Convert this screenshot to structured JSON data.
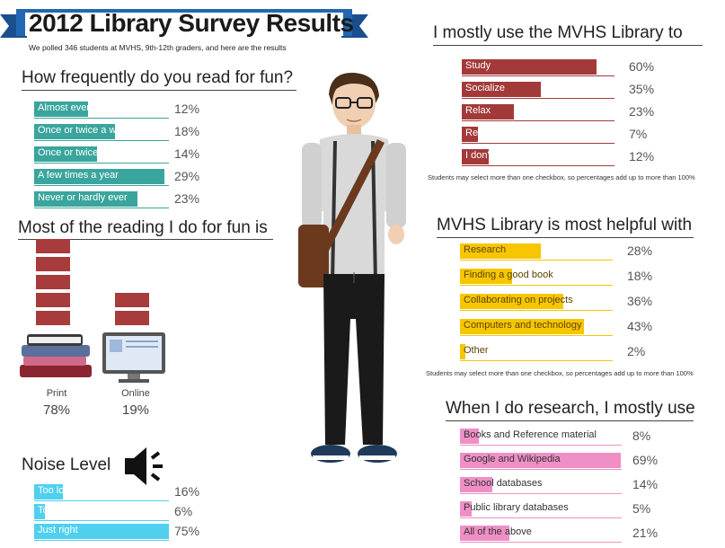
{
  "header": {
    "title": "2012 Library Survey Results",
    "subtitle": "We polled 346 students at MVHS, 9th-12th graders, and here are the results",
    "banner_color": "#1f5fa8"
  },
  "colors": {
    "teal": "#3aa59d",
    "maroon": "#a33a3a",
    "yellow": "#f7c600",
    "pink": "#ef8fc6",
    "cyan": "#4fd0ef"
  },
  "chart_data": [
    {
      "type": "bar",
      "title": "How frequently do you read for fun?",
      "categories": [
        "Almost every day",
        "Once or twice a week",
        "Once or twice a month",
        "A few times a year",
        "Never or hardly ever"
      ],
      "values": [
        12,
        18,
        14,
        29,
        23
      ],
      "value_labels": [
        "12%",
        "18%",
        "14%",
        "29%",
        "23%"
      ]
    },
    {
      "type": "bar",
      "title": "Most of the reading I do for fun is",
      "categories": [
        "Print",
        "Online"
      ],
      "values": [
        78,
        19
      ],
      "value_labels": [
        "78%",
        "19%"
      ]
    },
    {
      "type": "bar",
      "title": "Noise Level",
      "categories": [
        "Too loud",
        "Too quiet",
        "Just right"
      ],
      "values": [
        16,
        6,
        75
      ],
      "value_labels": [
        "16%",
        "6%",
        "75%"
      ]
    },
    {
      "type": "bar",
      "title": "I mostly use the MVHS Library to",
      "categories": [
        "Study",
        "Socialize",
        "Relax",
        "Read for pleasure",
        "I don't use the library"
      ],
      "values": [
        60,
        35,
        23,
        7,
        12
      ],
      "value_labels": [
        "60%",
        "35%",
        "23%",
        "7%",
        "12%"
      ],
      "note": "Students may select more than one checkbox, so percentages add up to more than 100%"
    },
    {
      "type": "bar",
      "title": "MVHS Library is most helpful with",
      "categories": [
        "Research",
        "Finding a good book",
        "Collaborating on projects",
        "Computers and technology",
        "Other"
      ],
      "values": [
        28,
        18,
        36,
        43,
        2
      ],
      "value_labels": [
        "28%",
        "18%",
        "36%",
        "43%",
        "2%"
      ],
      "note": "Students may select more than one checkbox, so percentages add up to more than 100%"
    },
    {
      "type": "bar",
      "title": "When I do research, I mostly use",
      "categories": [
        "Books and Reference material",
        "Google and Wikipedia",
        "School databases",
        "Public library databases",
        "All of the above"
      ],
      "values": [
        8,
        69,
        14,
        5,
        21
      ],
      "value_labels": [
        "8%",
        "69%",
        "14%",
        "5%",
        "21%"
      ]
    }
  ]
}
